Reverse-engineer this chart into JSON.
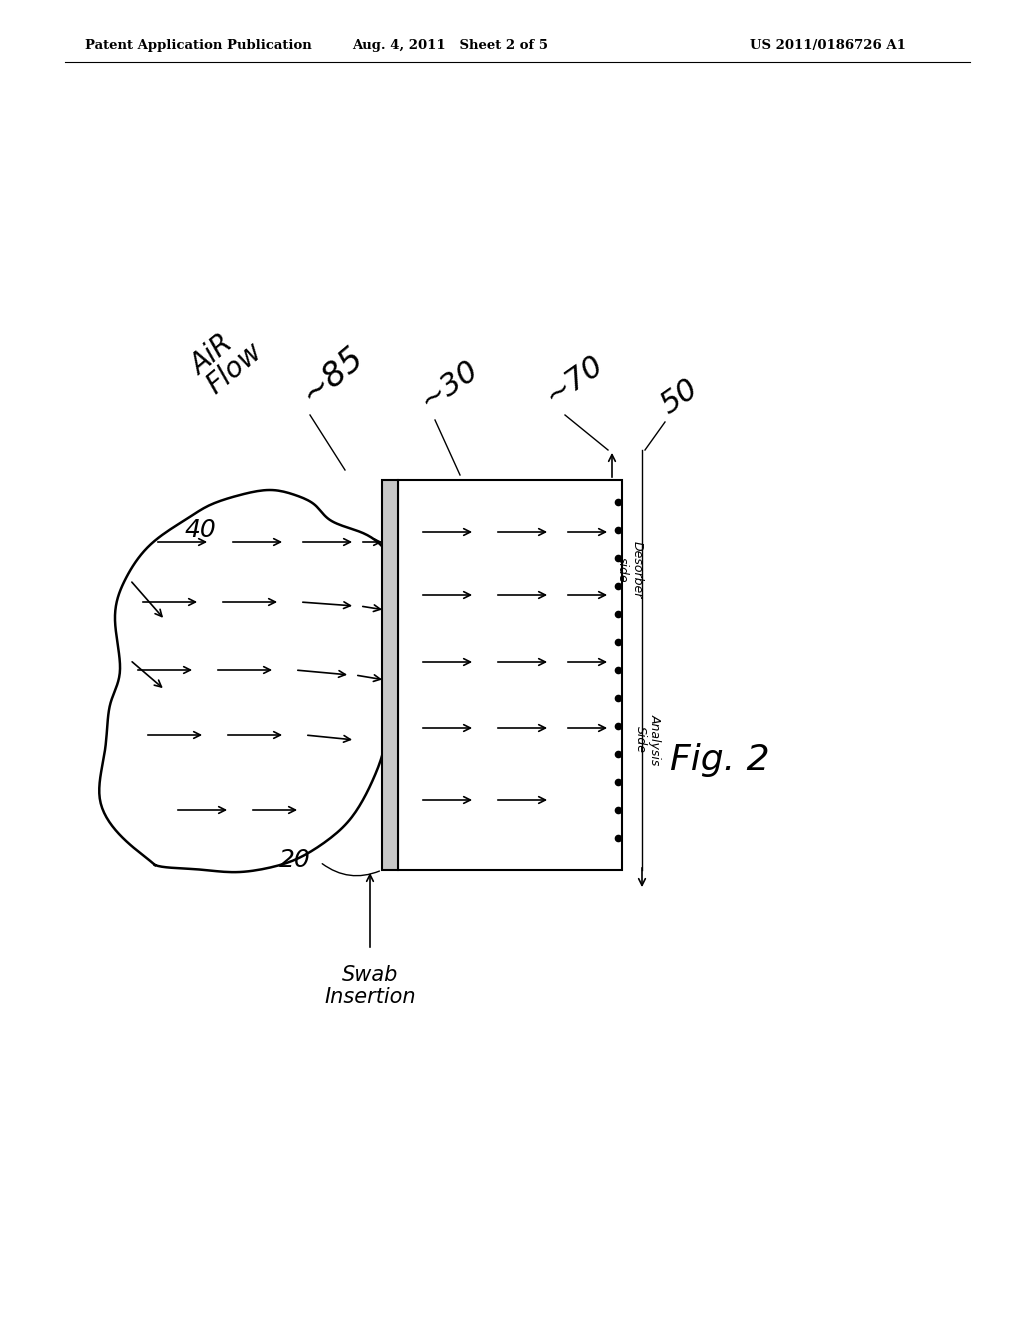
{
  "background_color": "#ffffff",
  "header_left": "Patent Application Publication",
  "header_mid": "Aug. 4, 2011   Sheet 2 of 5",
  "header_right": "US 2011/0186726 A1",
  "fig_label": "Fig. 2"
}
